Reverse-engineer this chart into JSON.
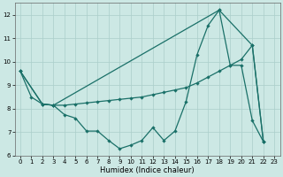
{
  "xlabel": "Humidex (Indice chaleur)",
  "xlim": [
    -0.5,
    23.5
  ],
  "ylim": [
    6,
    12.5
  ],
  "yticks": [
    6,
    7,
    8,
    9,
    10,
    11,
    12
  ],
  "xticks": [
    0,
    1,
    2,
    3,
    4,
    5,
    6,
    7,
    8,
    9,
    10,
    11,
    12,
    13,
    14,
    15,
    16,
    17,
    18,
    19,
    20,
    21,
    22,
    23
  ],
  "bg_color": "#cce8e4",
  "grid_color": "#aaceca",
  "line_color": "#1a7068",
  "line1_x": [
    0,
    1,
    2,
    3,
    4,
    5,
    6,
    7,
    8,
    9,
    10,
    11,
    12,
    13,
    14,
    15,
    16,
    17,
    18,
    19,
    20,
    21,
    22
  ],
  "line1_y": [
    9.6,
    8.5,
    8.2,
    8.15,
    7.75,
    7.6,
    7.05,
    7.05,
    6.65,
    6.3,
    6.45,
    6.65,
    7.2,
    6.65,
    7.05,
    8.3,
    10.3,
    11.55,
    12.2,
    9.85,
    9.85,
    7.5,
    6.6
  ],
  "line2_x": [
    0,
    2,
    3,
    4,
    5,
    6,
    7,
    8,
    9,
    10,
    11,
    12,
    13,
    14,
    15,
    16,
    17,
    18,
    19,
    20,
    21,
    22
  ],
  "line2_y": [
    9.6,
    8.2,
    8.15,
    8.15,
    8.2,
    8.25,
    8.3,
    8.35,
    8.4,
    8.45,
    8.5,
    8.6,
    8.7,
    8.8,
    8.9,
    9.1,
    9.35,
    9.6,
    9.85,
    10.1,
    10.7,
    6.6
  ],
  "line3_x": [
    0,
    2,
    3,
    18,
    21,
    22
  ],
  "line3_y": [
    9.6,
    8.2,
    8.15,
    12.2,
    10.7,
    6.6
  ]
}
